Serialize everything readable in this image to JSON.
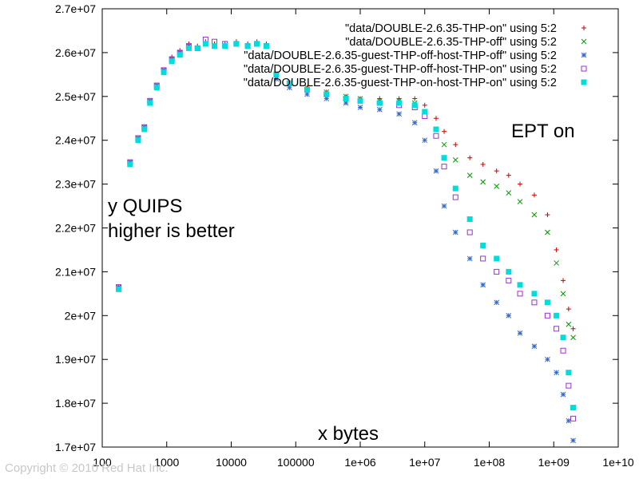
{
  "chart_data": {
    "type": "scatter",
    "title": "",
    "xlabel": "x bytes",
    "ylabel": "",
    "xscale": "log",
    "xlim": [
      100,
      10000000000
    ],
    "ylim": [
      17000000,
      27000000
    ],
    "x_tick_labels": [
      "100",
      "1000",
      "10000",
      "100000",
      "1e+06",
      "1e+07",
      "1e+08",
      "1e+09",
      "1e+10"
    ],
    "y_tick_labels": [
      "1.7e+07",
      "1.8e+07",
      "1.9e+07",
      "2e+07",
      "2.1e+07",
      "2.2e+07",
      "2.3e+07",
      "2.4e+07",
      "2.5e+07",
      "2.6e+07",
      "2.7e+07"
    ],
    "grid": false,
    "legend": "top-right",
    "annotations": [
      "EPT on",
      "y QUIPS",
      "higher is better"
    ],
    "series": [
      {
        "name": "\"data/DOUBLE-2.6.35-THP-on\" using 5:2",
        "marker": "plus",
        "color": "#cc0000",
        "x": [
          180,
          270,
          360,
          450,
          550,
          700,
          900,
          1200,
          1600,
          2200,
          3000,
          4000,
          5500,
          8000,
          12000,
          18000,
          25000,
          35000,
          50000,
          80000,
          150000,
          300000,
          600000,
          1000000,
          2000000,
          4000000,
          7000000,
          10000000,
          15000000,
          20000000,
          30000000,
          50000000,
          80000000,
          130000000,
          200000000,
          300000000,
          500000000,
          800000000,
          1100000000,
          1400000000,
          1700000000,
          2000000000
        ],
        "y": [
          20650000,
          23500000,
          24050000,
          24300000,
          24900000,
          25250000,
          25600000,
          25900000,
          26050000,
          26200000,
          26150000,
          26250000,
          26200000,
          26200000,
          26250000,
          26200000,
          26250000,
          26200000,
          25500000,
          25300000,
          25200000,
          25100000,
          25000000,
          24950000,
          24950000,
          24950000,
          24950000,
          24800000,
          24500000,
          24200000,
          23900000,
          23600000,
          23450000,
          23300000,
          23200000,
          23000000,
          22750000,
          22300000,
          21500000,
          20800000,
          20150000,
          19700000
        ]
      },
      {
        "name": "\"data/DOUBLE-2.6.35-THP-off\" using 5:2",
        "marker": "cross",
        "color": "#009900",
        "x": [
          180,
          270,
          360,
          450,
          550,
          700,
          900,
          1200,
          1600,
          2200,
          3000,
          4000,
          5500,
          8000,
          12000,
          18000,
          25000,
          35000,
          50000,
          80000,
          150000,
          300000,
          600000,
          1000000,
          2000000,
          4000000,
          7000000,
          10000000,
          15000000,
          20000000,
          30000000,
          50000000,
          80000000,
          130000000,
          200000000,
          300000000,
          500000000,
          800000000,
          1100000000,
          1400000000,
          1700000000,
          2000000000
        ],
        "y": [
          20650000,
          23500000,
          24050000,
          24300000,
          24900000,
          25250000,
          25600000,
          25850000,
          26000000,
          26150000,
          26100000,
          26200000,
          26150000,
          26150000,
          26200000,
          26150000,
          26200000,
          26150000,
          25500000,
          25300000,
          25200000,
          25100000,
          25000000,
          24950000,
          24900000,
          24900000,
          24850000,
          24650000,
          24250000,
          23900000,
          23550000,
          23200000,
          23050000,
          22950000,
          22800000,
          22600000,
          22300000,
          21900000,
          21200000,
          20500000,
          19800000,
          19500000
        ]
      },
      {
        "name": "\"data/DOUBLE-2.6.35-guest-THP-off-host-THP-off\" using 5:2",
        "marker": "star",
        "color": "#3366cc",
        "x": [
          180,
          270,
          360,
          450,
          550,
          700,
          900,
          1200,
          1600,
          2200,
          3000,
          4000,
          5500,
          8000,
          12000,
          18000,
          25000,
          35000,
          50000,
          80000,
          150000,
          300000,
          600000,
          1000000,
          2000000,
          4000000,
          7000000,
          10000000,
          15000000,
          20000000,
          30000000,
          50000000,
          80000000,
          130000000,
          200000000,
          300000000,
          500000000,
          800000000,
          1100000000,
          1400000000,
          1700000000,
          2000000000
        ],
        "y": [
          20650000,
          23500000,
          24050000,
          24300000,
          24900000,
          25250000,
          25600000,
          25850000,
          26000000,
          26150000,
          26100000,
          26200000,
          26150000,
          26150000,
          26200000,
          26150000,
          26200000,
          26150000,
          25400000,
          25200000,
          25050000,
          24950000,
          24850000,
          24750000,
          24700000,
          24600000,
          24400000,
          24000000,
          23300000,
          22500000,
          21900000,
          21300000,
          20700000,
          20300000,
          20000000,
          19600000,
          19300000,
          19000000,
          18700000,
          18200000,
          17600000,
          17150000
        ]
      },
      {
        "name": "\"data/DOUBLE-2.6.35-guest-THP-off-host-THP-on\" using 5:2",
        "marker": "square",
        "color": "#9933cc",
        "x": [
          180,
          270,
          360,
          450,
          550,
          700,
          900,
          1200,
          1600,
          2200,
          3000,
          4000,
          5500,
          8000,
          12000,
          18000,
          25000,
          35000,
          50000,
          80000,
          150000,
          300000,
          600000,
          1000000,
          2000000,
          4000000,
          7000000,
          10000000,
          15000000,
          20000000,
          30000000,
          50000000,
          80000000,
          130000000,
          200000000,
          300000000,
          500000000,
          800000000,
          1100000000,
          1400000000,
          1700000000,
          2000000000
        ],
        "y": [
          20650000,
          23500000,
          24050000,
          24300000,
          24900000,
          25250000,
          25600000,
          25850000,
          26000000,
          26150000,
          26100000,
          26300000,
          26250000,
          26200000,
          26200000,
          26150000,
          26200000,
          26150000,
          25500000,
          25300000,
          25150000,
          25050000,
          24950000,
          24900000,
          24850000,
          24800000,
          24750000,
          24550000,
          24100000,
          23400000,
          22700000,
          21900000,
          21300000,
          21000000,
          20800000,
          20500000,
          20300000,
          20000000,
          19700000,
          19200000,
          18400000,
          17650000
        ]
      },
      {
        "name": "\"data/DOUBLE-2.6.35-guest-THP-on-host-THP-on\" using 5:2",
        "marker": "filled-square",
        "color": "#00dddd",
        "x": [
          180,
          270,
          360,
          450,
          550,
          700,
          900,
          1200,
          1600,
          2200,
          3000,
          4000,
          5500,
          8000,
          12000,
          18000,
          25000,
          35000,
          50000,
          80000,
          150000,
          300000,
          600000,
          1000000,
          2000000,
          4000000,
          7000000,
          10000000,
          15000000,
          20000000,
          30000000,
          50000000,
          80000000,
          130000000,
          200000000,
          300000000,
          500000000,
          800000000,
          1100000000,
          1400000000,
          1700000000,
          2000000000
        ],
        "y": [
          20600000,
          23450000,
          24000000,
          24250000,
          24850000,
          25200000,
          25550000,
          25800000,
          25950000,
          26100000,
          26100000,
          26200000,
          26150000,
          26150000,
          26200000,
          26150000,
          26200000,
          26150000,
          25500000,
          25300000,
          25150000,
          25050000,
          24950000,
          24900000,
          24850000,
          24850000,
          24800000,
          24650000,
          24250000,
          23600000,
          22900000,
          22200000,
          21600000,
          21300000,
          21000000,
          20700000,
          20500000,
          20300000,
          20000000,
          19500000,
          18700000,
          17900000
        ]
      }
    ]
  },
  "footer": {
    "copyright": "Copyright © 2010 Red Hat Inc."
  }
}
